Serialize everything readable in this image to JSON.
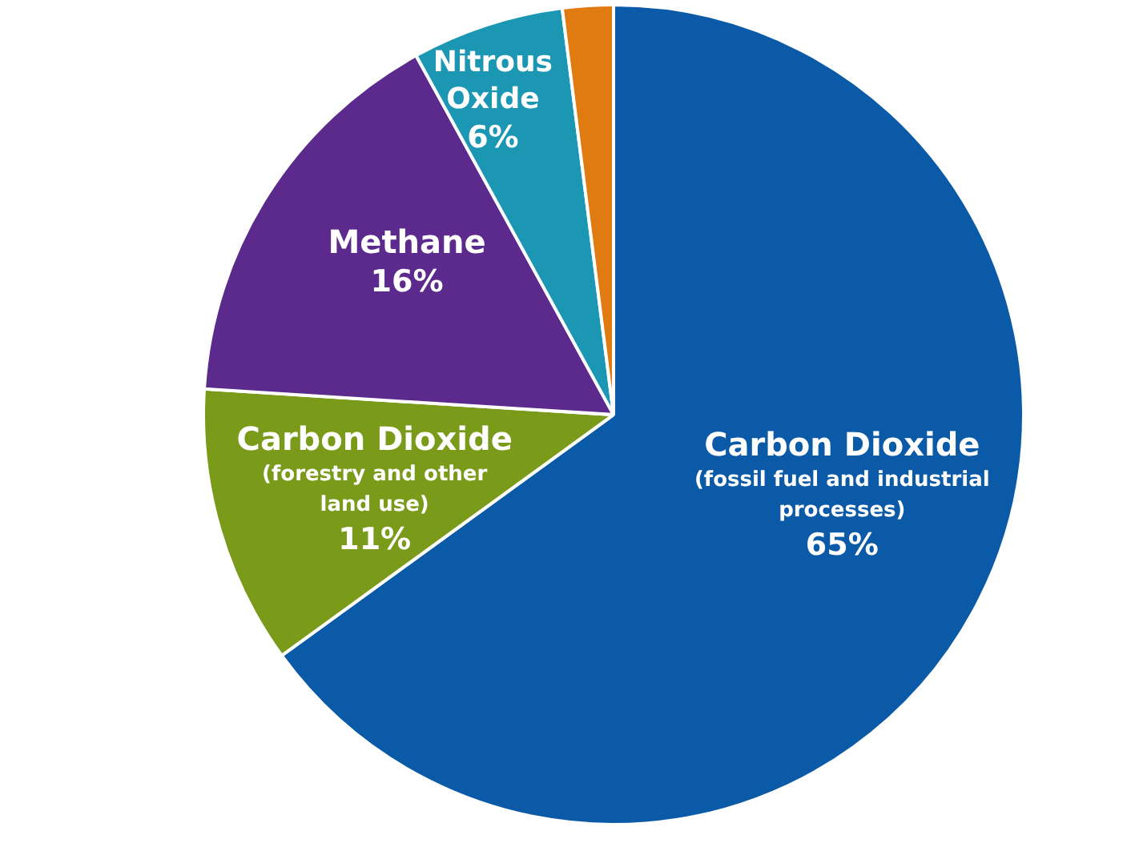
{
  "chart_data": {
    "type": "pie",
    "categories": [
      "Carbon Dioxide (fossil fuel and industrial processes)",
      "Carbon Dioxide (forestry and other land use)",
      "Methane",
      "Nitrous Oxide",
      null
    ],
    "values": [
      65,
      11,
      16,
      6,
      2
    ],
    "colors": [
      "#0b5aa8",
      "#7a9a1a",
      "#5b2a8c",
      "#1b97b3",
      "#e07b12"
    ],
    "value_labels": [
      "65%",
      "11%",
      "16%",
      "6%",
      null
    ],
    "legend": false
  }
}
